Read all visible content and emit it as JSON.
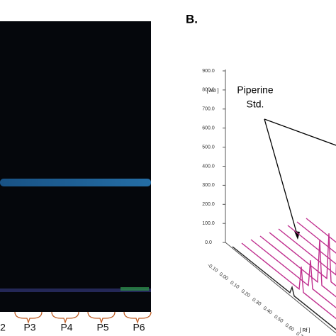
{
  "panel_a": {
    "lanes": [
      "2",
      "P3",
      "P4",
      "P5",
      "P6"
    ]
  },
  "panel_b": {
    "label": "B.",
    "y_axis_title": "[ AU ]",
    "y_ticks": [
      "900.0",
      "800.0",
      "700.0",
      "600.0",
      "500.0",
      "400.0",
      "300.0",
      "200.0",
      "100.0",
      "0.0"
    ],
    "x_axis_title": "[ Rf ]",
    "x_ticks": [
      "-0.10",
      "0.00",
      "0.10",
      "0.20",
      "0.30",
      "0.40",
      "0.50",
      "0.60",
      "0.70",
      "0.80"
    ],
    "annotation": [
      "Piperine",
      "Std."
    ]
  }
}
